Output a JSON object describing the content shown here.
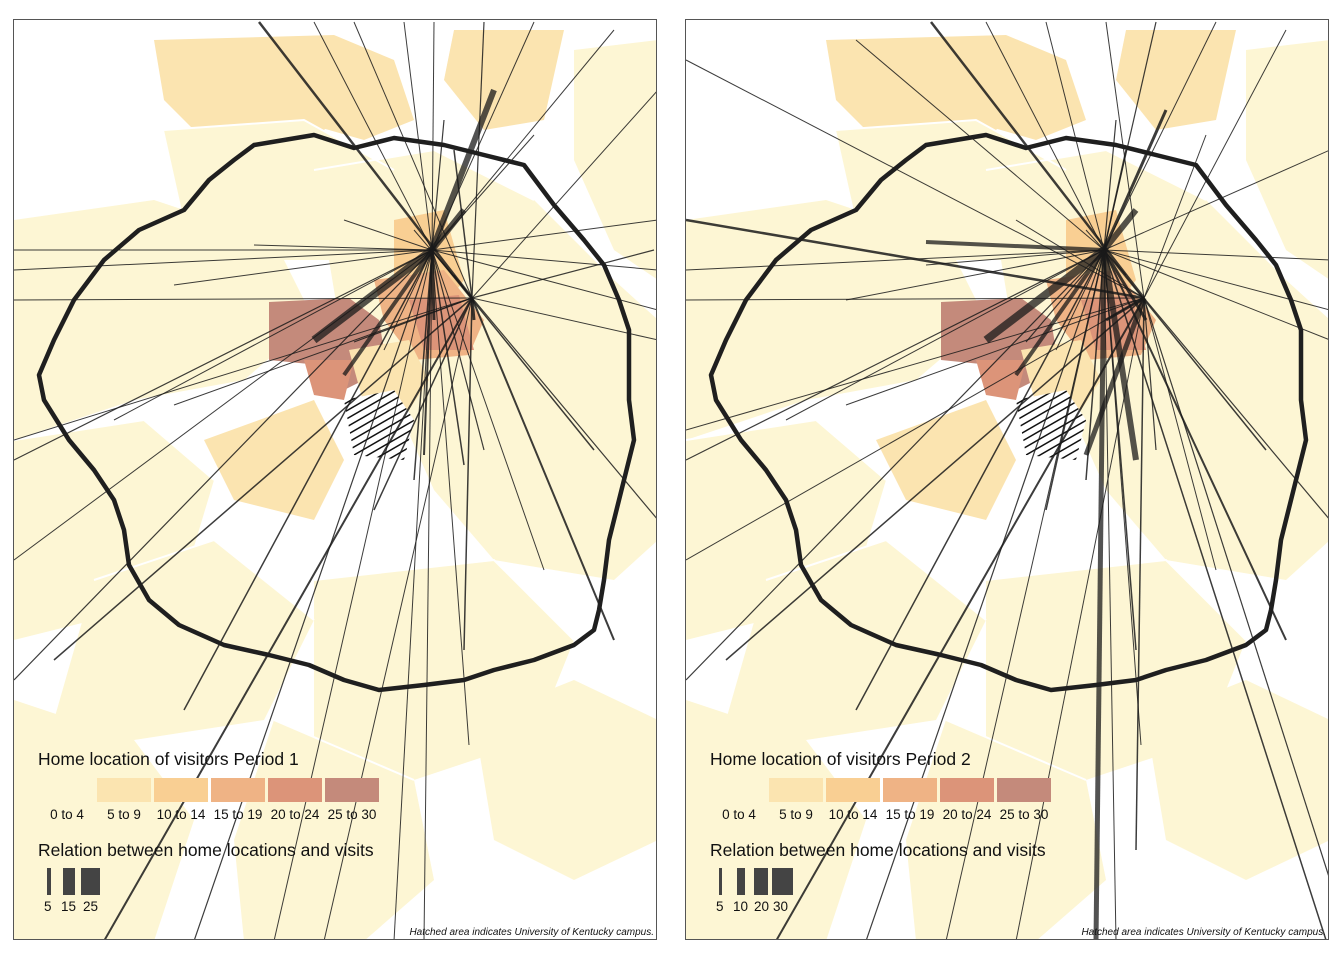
{
  "panels": [
    {
      "id": "period-1",
      "legend_title": "Home location of visitors Period 1",
      "choropleth_classes": [
        {
          "label": "0 to 4",
          "color": "#fdf6d4"
        },
        {
          "label": "5 to 9",
          "color": "#fbe4b0"
        },
        {
          "label": "10 to 14",
          "color": "#f9cf93"
        },
        {
          "label": "15 to 19",
          "color": "#efb385"
        },
        {
          "label": "20 to 24",
          "color": "#dc9479"
        },
        {
          "label": "25 to 30",
          "color": "#c48a7b"
        }
      ],
      "flow_legend_title": "Relation between home locations and visits",
      "flow_classes": [
        "5",
        "15",
        "25"
      ],
      "caption": "Hatched area indicates University of Kentucky campus."
    },
    {
      "id": "period-2",
      "legend_title": "Home location of visitors Period 2",
      "choropleth_classes": [
        {
          "label": "0 to 4",
          "color": "#fdf6d4"
        },
        {
          "label": "5 to 9",
          "color": "#fbe4b0"
        },
        {
          "label": "10 to 14",
          "color": "#f9cf93"
        },
        {
          "label": "15 to 19",
          "color": "#efb385"
        },
        {
          "label": "20 to 24",
          "color": "#dc9479"
        },
        {
          "label": "25 to 30",
          "color": "#c48a7b"
        }
      ],
      "flow_legend_title": "Relation between home locations and visits",
      "flow_classes": [
        "5",
        "10",
        "20",
        "30"
      ],
      "caption": "Hatched area indicates University of Kentucky campus."
    }
  ]
}
